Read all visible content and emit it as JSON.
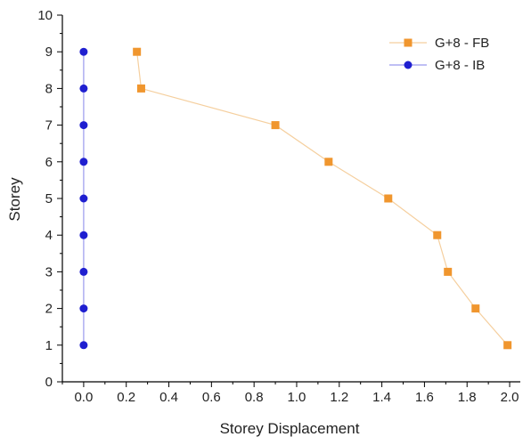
{
  "chart_data": {
    "type": "line",
    "title": "",
    "xlabel": "Storey Displacement",
    "ylabel": "Storey",
    "xlim": [
      -0.1,
      2.05
    ],
    "ylim": [
      0,
      10
    ],
    "xticks": [
      "0.0",
      "0.2",
      "0.4",
      "0.6",
      "0.8",
      "1.0",
      "1.2",
      "1.4",
      "1.6",
      "1.8",
      "2.0"
    ],
    "yticks": [
      "0",
      "1",
      "2",
      "3",
      "4",
      "5",
      "6",
      "7",
      "8",
      "9",
      "10"
    ],
    "grid": false,
    "legend_position": "top-right",
    "series": [
      {
        "name": "G+8 - FB",
        "marker": "square",
        "color": "#F0962E",
        "line_color": "#F5CF9E",
        "points": [
          {
            "x": 0.25,
            "y": 9
          },
          {
            "x": 0.27,
            "y": 8
          },
          {
            "x": 0.9,
            "y": 7
          },
          {
            "x": 1.15,
            "y": 6
          },
          {
            "x": 1.43,
            "y": 5
          },
          {
            "x": 1.66,
            "y": 4
          },
          {
            "x": 1.71,
            "y": 3
          },
          {
            "x": 1.84,
            "y": 2
          },
          {
            "x": 1.99,
            "y": 1
          }
        ]
      },
      {
        "name": "G+8 - IB",
        "marker": "circle",
        "color": "#1F1FD0",
        "line_color": "#9999EE",
        "points": [
          {
            "x": 0.0,
            "y": 9
          },
          {
            "x": 0.0,
            "y": 8
          },
          {
            "x": 0.0,
            "y": 7
          },
          {
            "x": 0.0,
            "y": 6
          },
          {
            "x": 0.0,
            "y": 5
          },
          {
            "x": 0.0,
            "y": 4
          },
          {
            "x": 0.0,
            "y": 3
          },
          {
            "x": 0.0,
            "y": 2
          },
          {
            "x": 0.0,
            "y": 1
          }
        ]
      }
    ]
  }
}
